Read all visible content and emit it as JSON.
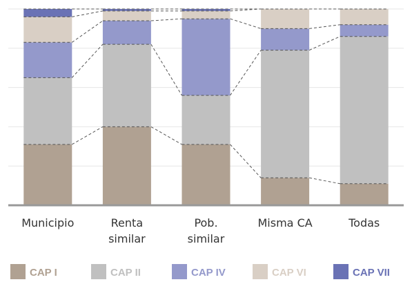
{
  "chart_data": {
    "type": "stacked_bar",
    "categories": [
      "Municipio",
      "Renta similar",
      "Pob. similar",
      "Misma CA",
      "Todas"
    ],
    "series": [
      {
        "name": "CAP I",
        "color": "#b0a192",
        "values": [
          31,
          40,
          31,
          14,
          11
        ]
      },
      {
        "name": "CAP II",
        "color": "#c0c0c0",
        "values": [
          34,
          42,
          25,
          65,
          75
        ]
      },
      {
        "name": "CAP IV",
        "color": "#9499cb",
        "values": [
          18,
          12,
          39,
          11,
          6
        ]
      },
      {
        "name": "CAP VI",
        "color": "#d9cfc5",
        "values": [
          13,
          5,
          4,
          10,
          8
        ]
      },
      {
        "name": "CAP VII",
        "color": "#6a72b5",
        "values": [
          4,
          1,
          1,
          0,
          0
        ]
      }
    ],
    "ylim": [
      0,
      100
    ],
    "yticks": [
      0,
      20,
      40,
      60,
      80,
      100
    ],
    "grid": true
  }
}
